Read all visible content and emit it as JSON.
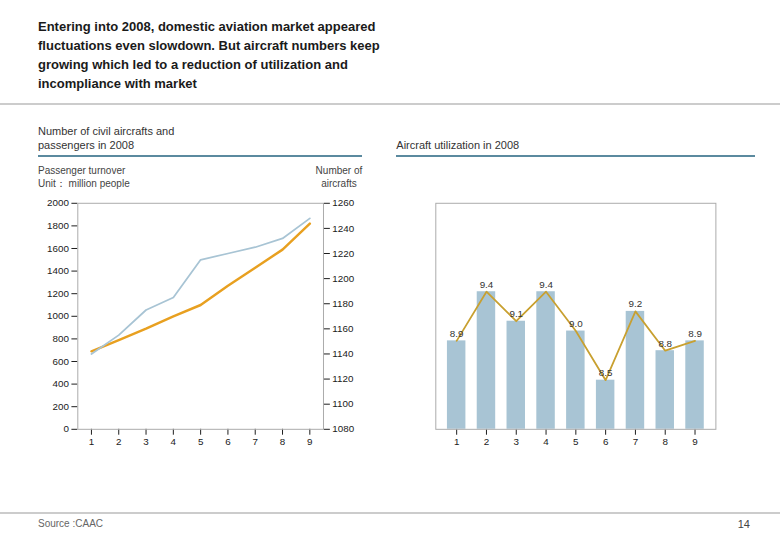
{
  "title": "Entering into 2008, domestic aviation market appeared\nfluctuations even slowdown. But aircraft numbers keep\ngrowing which led to a reduction of utilization and\nincompliance with market",
  "annotations": [
    "Source :CAAC",
    "14"
  ],
  "chart_data": [
    {
      "type": "line",
      "title": "Number of civil aircrafts and\npassengers in 2008",
      "ylabel": "Passenger turnover\nUnit： million people",
      "y2label": "Number of\naircrafts",
      "x": [
        1,
        2,
        3,
        4,
        5,
        6,
        7,
        8,
        9
      ],
      "xlim": [
        0.5,
        9.5
      ],
      "xticks": [
        1,
        2,
        3,
        4,
        5,
        6,
        7,
        8,
        9
      ],
      "ylim": [
        0,
        2000
      ],
      "yticks": [
        0,
        200,
        400,
        600,
        800,
        1000,
        1200,
        1400,
        1600,
        1800,
        2000
      ],
      "y2lim": [
        1080,
        1260
      ],
      "y2ticks": [
        1080,
        1100,
        1120,
        1140,
        1160,
        1180,
        1200,
        1220,
        1240,
        1260
      ],
      "grid": false,
      "series": [
        {
          "color": "#e8a020",
          "values": [
            690,
            790,
            890,
            1000,
            1100,
            1270,
            1430,
            1590,
            1820
          ]
        },
        {
          "color": "#a8c4d4",
          "axis": "y2",
          "values": [
            1140,
            1155,
            1175,
            1185,
            1215,
            1220,
            1225,
            1232,
            1248
          ]
        }
      ]
    },
    {
      "type": "bar",
      "title": "Aircraft utilization in 2008",
      "x": [
        1,
        2,
        3,
        4,
        5,
        6,
        7,
        8,
        9
      ],
      "xlim": [
        0.3,
        9.7
      ],
      "xticks": [
        1,
        2,
        3,
        4,
        5,
        6,
        7,
        8,
        9
      ],
      "ylim": [
        8.0,
        10.3
      ],
      "tick_labels": "x",
      "grid": false,
      "series": [
        {
          "type": "bar",
          "color": "#a8c4d4",
          "values": [
            8.9,
            9.4,
            9.1,
            9.4,
            9.0,
            8.5,
            9.2,
            8.8,
            8.9
          ],
          "data_labels": true,
          "value_labels": [
            "8.9",
            "9.4",
            "9.1",
            "9.4",
            "9.0",
            "8.5",
            "9.2",
            "8.8",
            "8.9"
          ]
        },
        {
          "type": "line",
          "color": "#c8a030",
          "values": [
            8.9,
            9.4,
            9.1,
            9.4,
            9.0,
            8.5,
            9.2,
            8.8,
            8.9
          ]
        }
      ]
    }
  ]
}
